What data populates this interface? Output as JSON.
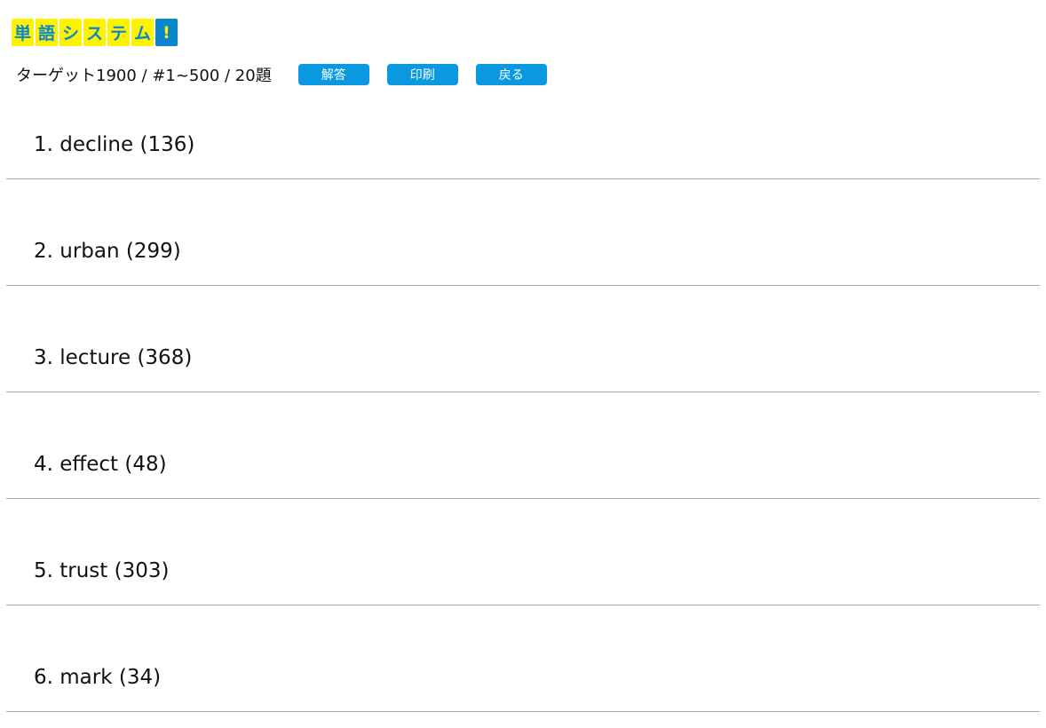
{
  "logo": {
    "chars": [
      "単",
      "語",
      "シ",
      "ス",
      "テ",
      "ム",
      "!"
    ],
    "colors": {
      "box": "#fff200",
      "text": "#0a86cc"
    }
  },
  "header": {
    "info": "ターゲット1900 / #1~500 / 20題",
    "buttons": [
      "解答",
      "印刷",
      "戻る"
    ],
    "button_color": "#0a98e0"
  },
  "questions": [
    "1. decline (136)",
    "2. urban (299)",
    "3. lecture (368)",
    "4. effect (48)",
    "5. trust (303)",
    "6. mark (34)"
  ]
}
